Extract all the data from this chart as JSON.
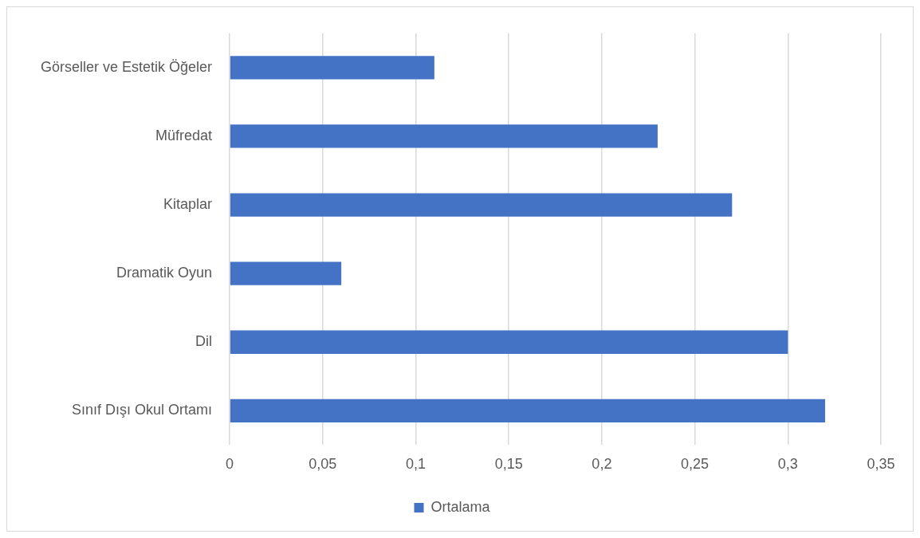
{
  "chart_data": {
    "type": "bar",
    "orientation": "horizontal",
    "categories": [
      "Görseller ve Estetik Öğeler",
      "Müfredat",
      "Kitaplar",
      "Dramatik Oyun",
      "Dil",
      "Sınıf Dışı Okul Ortamı"
    ],
    "series": [
      {
        "name": "Ortalama",
        "color": "#4472c4",
        "values": [
          0.11,
          0.23,
          0.27,
          0.06,
          0.3,
          0.32
        ]
      }
    ],
    "xlim": [
      0,
      0.35
    ],
    "xticks": [
      0,
      {
        "value": 0.05,
        "label": "0,05"
      },
      {
        "value": 0.1,
        "label": "0,1"
      },
      {
        "value": 0.15,
        "label": "0,15"
      },
      {
        "value": 0.2,
        "label": "0,2"
      },
      {
        "value": 0.25,
        "label": "0,25"
      },
      {
        "value": 0.3,
        "label": "0,3"
      },
      {
        "value": 0.35,
        "label": "0,35"
      }
    ],
    "grid": "x",
    "legend": "bottom"
  }
}
